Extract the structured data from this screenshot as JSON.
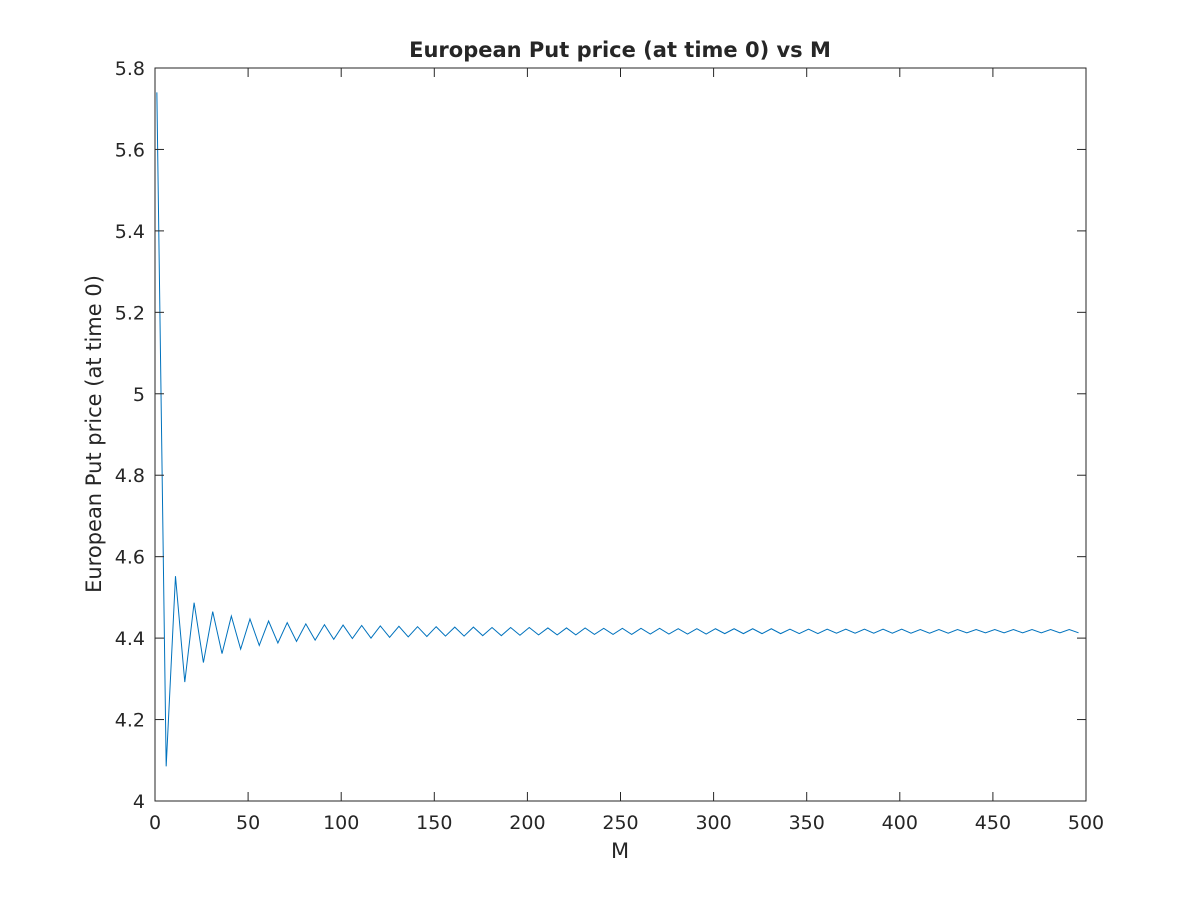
{
  "chart_data": {
    "type": "line",
    "title": "European Put price (at time 0) vs M",
    "xlabel": "M",
    "ylabel": "European Put price (at time 0)",
    "xlim": [
      0,
      500
    ],
    "ylim": [
      4,
      5.8
    ],
    "xticks": [
      0,
      50,
      100,
      150,
      200,
      250,
      300,
      350,
      400,
      450,
      500
    ],
    "xtick_labels": [
      "0",
      "50",
      "100",
      "150",
      "200",
      "250",
      "300",
      "350",
      "400",
      "450",
      "500"
    ],
    "yticks": [
      4,
      4.2,
      4.4,
      4.6,
      4.8,
      5,
      5.2,
      5.4,
      5.6,
      5.8
    ],
    "ytick_labels": [
      "4",
      "4.2",
      "4.4",
      "4.6",
      "4.8",
      "5",
      "5.2",
      "5.4",
      "5.6",
      "5.8"
    ],
    "grid": false,
    "line_color": "#0072BD",
    "series": [
      {
        "x": [
          1,
          6,
          11,
          16,
          21,
          26,
          31,
          36,
          41,
          46,
          51,
          56,
          61,
          66,
          71,
          76,
          81,
          86,
          91,
          96,
          101,
          106,
          111,
          116,
          121,
          126,
          131,
          136,
          141,
          146,
          151,
          156,
          161,
          166,
          171,
          176,
          181,
          186,
          191,
          196,
          201,
          206,
          211,
          216,
          221,
          226,
          231,
          236,
          241,
          246,
          251,
          256,
          261,
          266,
          271,
          276,
          281,
          286,
          291,
          296,
          301,
          306,
          311,
          316,
          321,
          326,
          331,
          336,
          341,
          346,
          351,
          356,
          361,
          366,
          371,
          376,
          381,
          386,
          391,
          396,
          401,
          406,
          411,
          416,
          421,
          426,
          431,
          436,
          441,
          446,
          451,
          456,
          461,
          466,
          471,
          476,
          481,
          486,
          491,
          496
        ],
        "y": [
          5.74,
          4.085,
          4.552,
          4.292,
          4.487,
          4.34,
          4.465,
          4.362,
          4.454,
          4.373,
          4.447,
          4.382,
          4.442,
          4.388,
          4.438,
          4.392,
          4.435,
          4.395,
          4.433,
          4.397,
          4.432,
          4.399,
          4.431,
          4.4,
          4.43,
          4.402,
          4.429,
          4.403,
          4.428,
          4.404,
          4.428,
          4.405,
          4.427,
          4.405,
          4.427,
          4.406,
          4.426,
          4.406,
          4.426,
          4.407,
          4.426,
          4.408,
          4.425,
          4.408,
          4.425,
          4.408,
          4.425,
          4.409,
          4.424,
          4.409,
          4.424,
          4.409,
          4.424,
          4.41,
          4.424,
          4.41,
          4.423,
          4.41,
          4.423,
          4.41,
          4.423,
          4.411,
          4.423,
          4.411,
          4.423,
          4.411,
          4.423,
          4.411,
          4.422,
          4.411,
          4.422,
          4.411,
          4.422,
          4.412,
          4.422,
          4.412,
          4.422,
          4.412,
          4.422,
          4.412,
          4.422,
          4.412,
          4.421,
          4.412,
          4.421,
          4.412,
          4.421,
          4.413,
          4.421,
          4.413,
          4.421,
          4.413,
          4.421,
          4.413,
          4.421,
          4.413,
          4.421,
          4.413,
          4.421,
          4.413
        ]
      }
    ]
  }
}
